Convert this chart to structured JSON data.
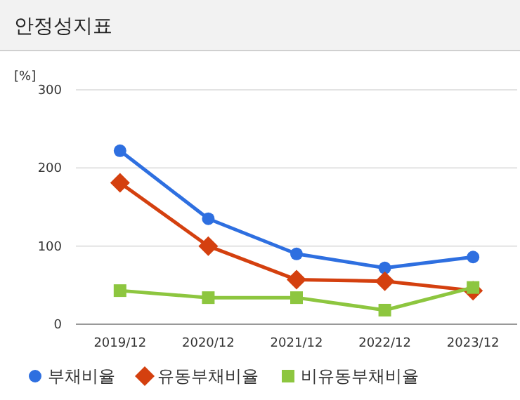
{
  "chart_data": {
    "type": "line",
    "title": "안정성지표",
    "ylabel": "[%]",
    "categories": [
      "2019/12",
      "2020/12",
      "2021/12",
      "2022/12",
      "2023/12"
    ],
    "series": [
      {
        "name": "부채비율",
        "color": "#2e6fe0",
        "marker": "circle",
        "values": [
          222,
          135,
          90,
          72,
          86
        ]
      },
      {
        "name": "유동부채비율",
        "color": "#d4400f",
        "marker": "diamond",
        "values": [
          181,
          100,
          57,
          55,
          43
        ]
      },
      {
        "name": "비유동부채비율",
        "color": "#8dc63f",
        "marker": "square",
        "values": [
          43,
          34,
          34,
          18,
          47
        ]
      }
    ],
    "ylim": [
      0,
      300
    ],
    "yticks": [
      0,
      100,
      200,
      300
    ],
    "grid": "y",
    "legend": "bottom"
  }
}
